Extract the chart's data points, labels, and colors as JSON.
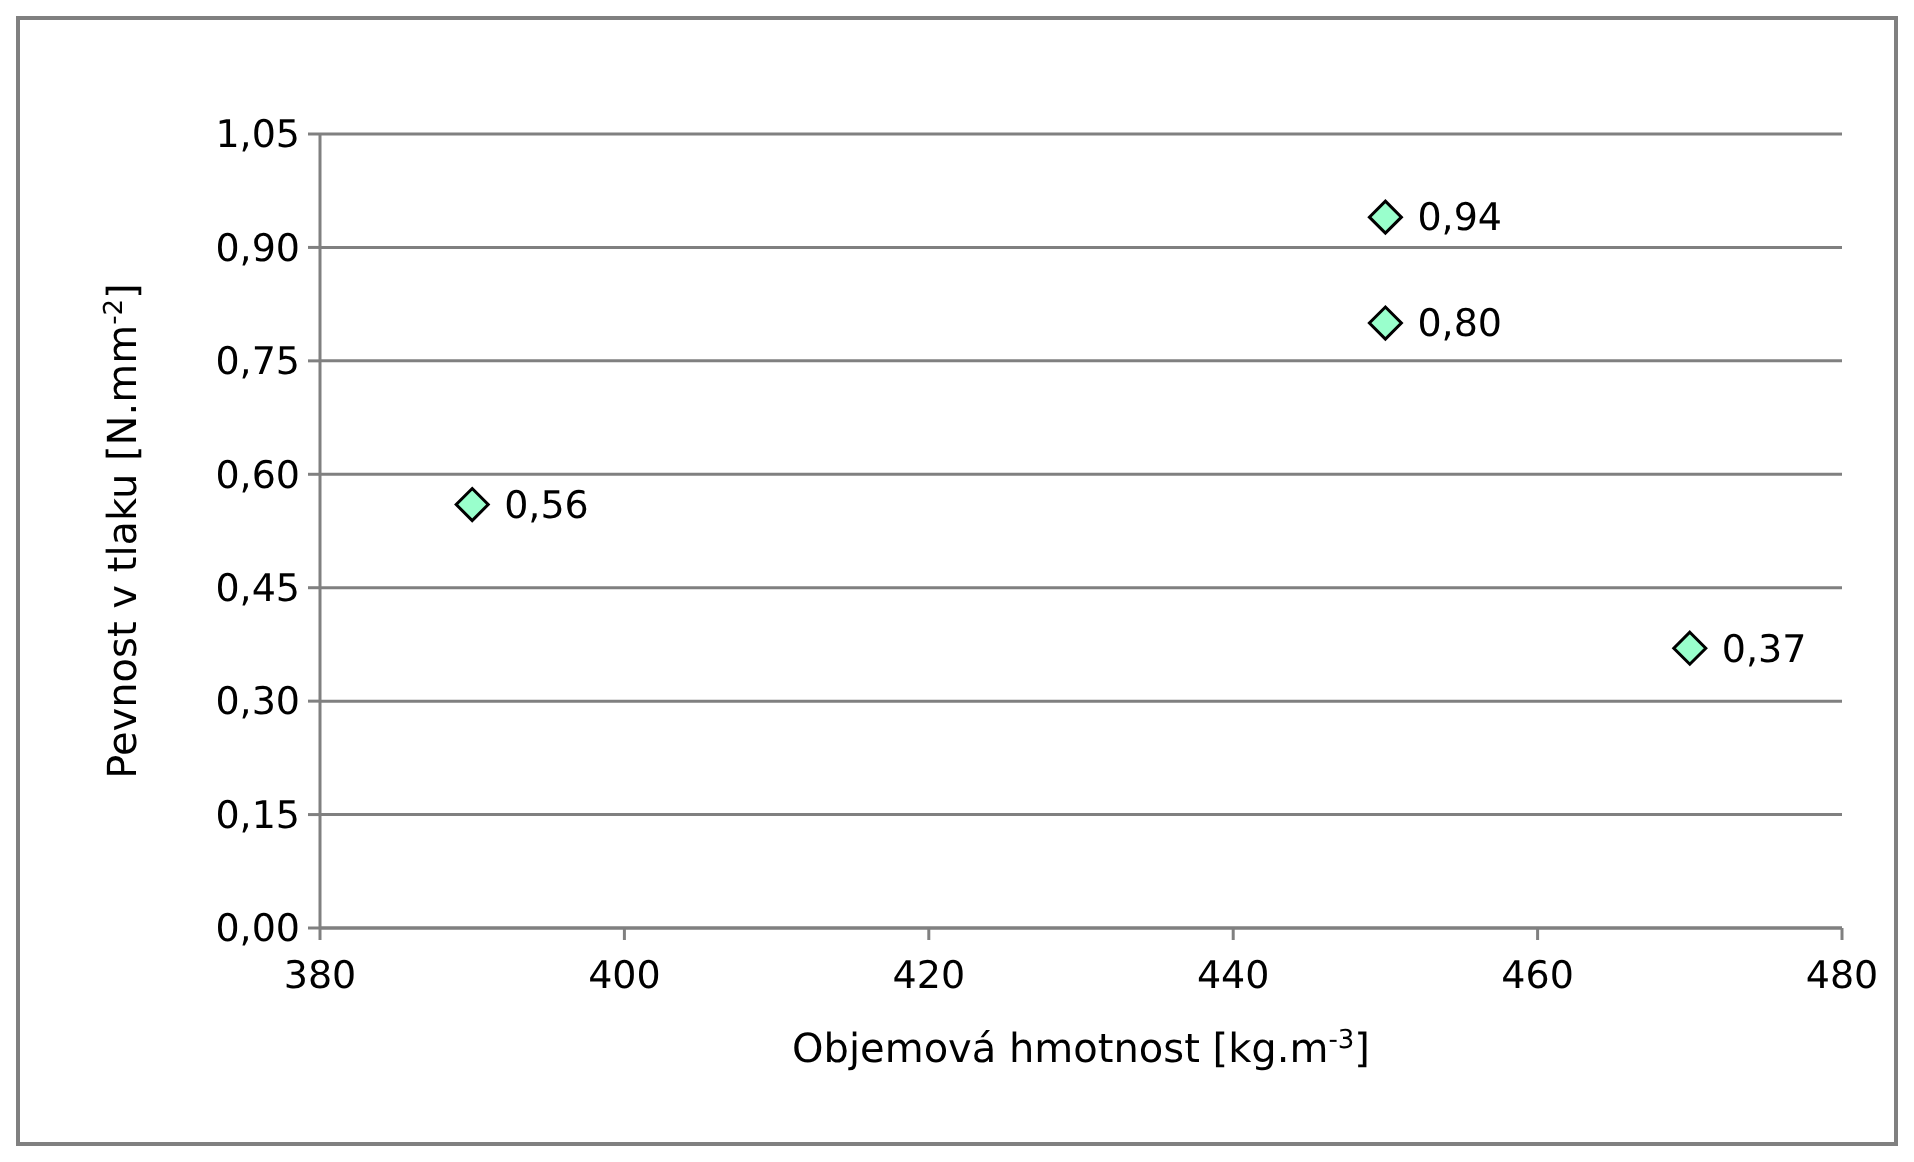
{
  "chart_data": {
    "type": "scatter",
    "xlabel": "Objemová hmotnost [kg.m$^{-3}$]",
    "ylabel": "Pevnost v tlaku [N.mm$^{-2}$]",
    "x": [
      390,
      450,
      450,
      470
    ],
    "series": [
      {
        "color": "#99ffcc",
        "values": [
          0.56,
          0.94,
          0.8,
          0.37
        ],
        "value_labels": [
          "0,56",
          "0,94",
          "0,80",
          "0,37"
        ]
      }
    ],
    "xlim": [
      380,
      480
    ],
    "xticks": [
      380,
      400,
      420,
      440,
      460,
      480
    ],
    "ylim": [
      0,
      1.05
    ],
    "yticks": [
      {
        "value": 0,
        "label": "0,00"
      },
      {
        "value": 0.15,
        "label": "0,15"
      },
      {
        "value": 0.3,
        "label": "0,30"
      },
      {
        "value": 0.45,
        "label": "0,45"
      },
      {
        "value": 0.6,
        "label": "0,60"
      },
      {
        "value": 0.75,
        "label": "0,75"
      },
      {
        "value": 0.9,
        "label": "0,90"
      },
      {
        "value": 1.05,
        "label": "1,05"
      }
    ],
    "grid": "y",
    "marker": "diamond"
  }
}
